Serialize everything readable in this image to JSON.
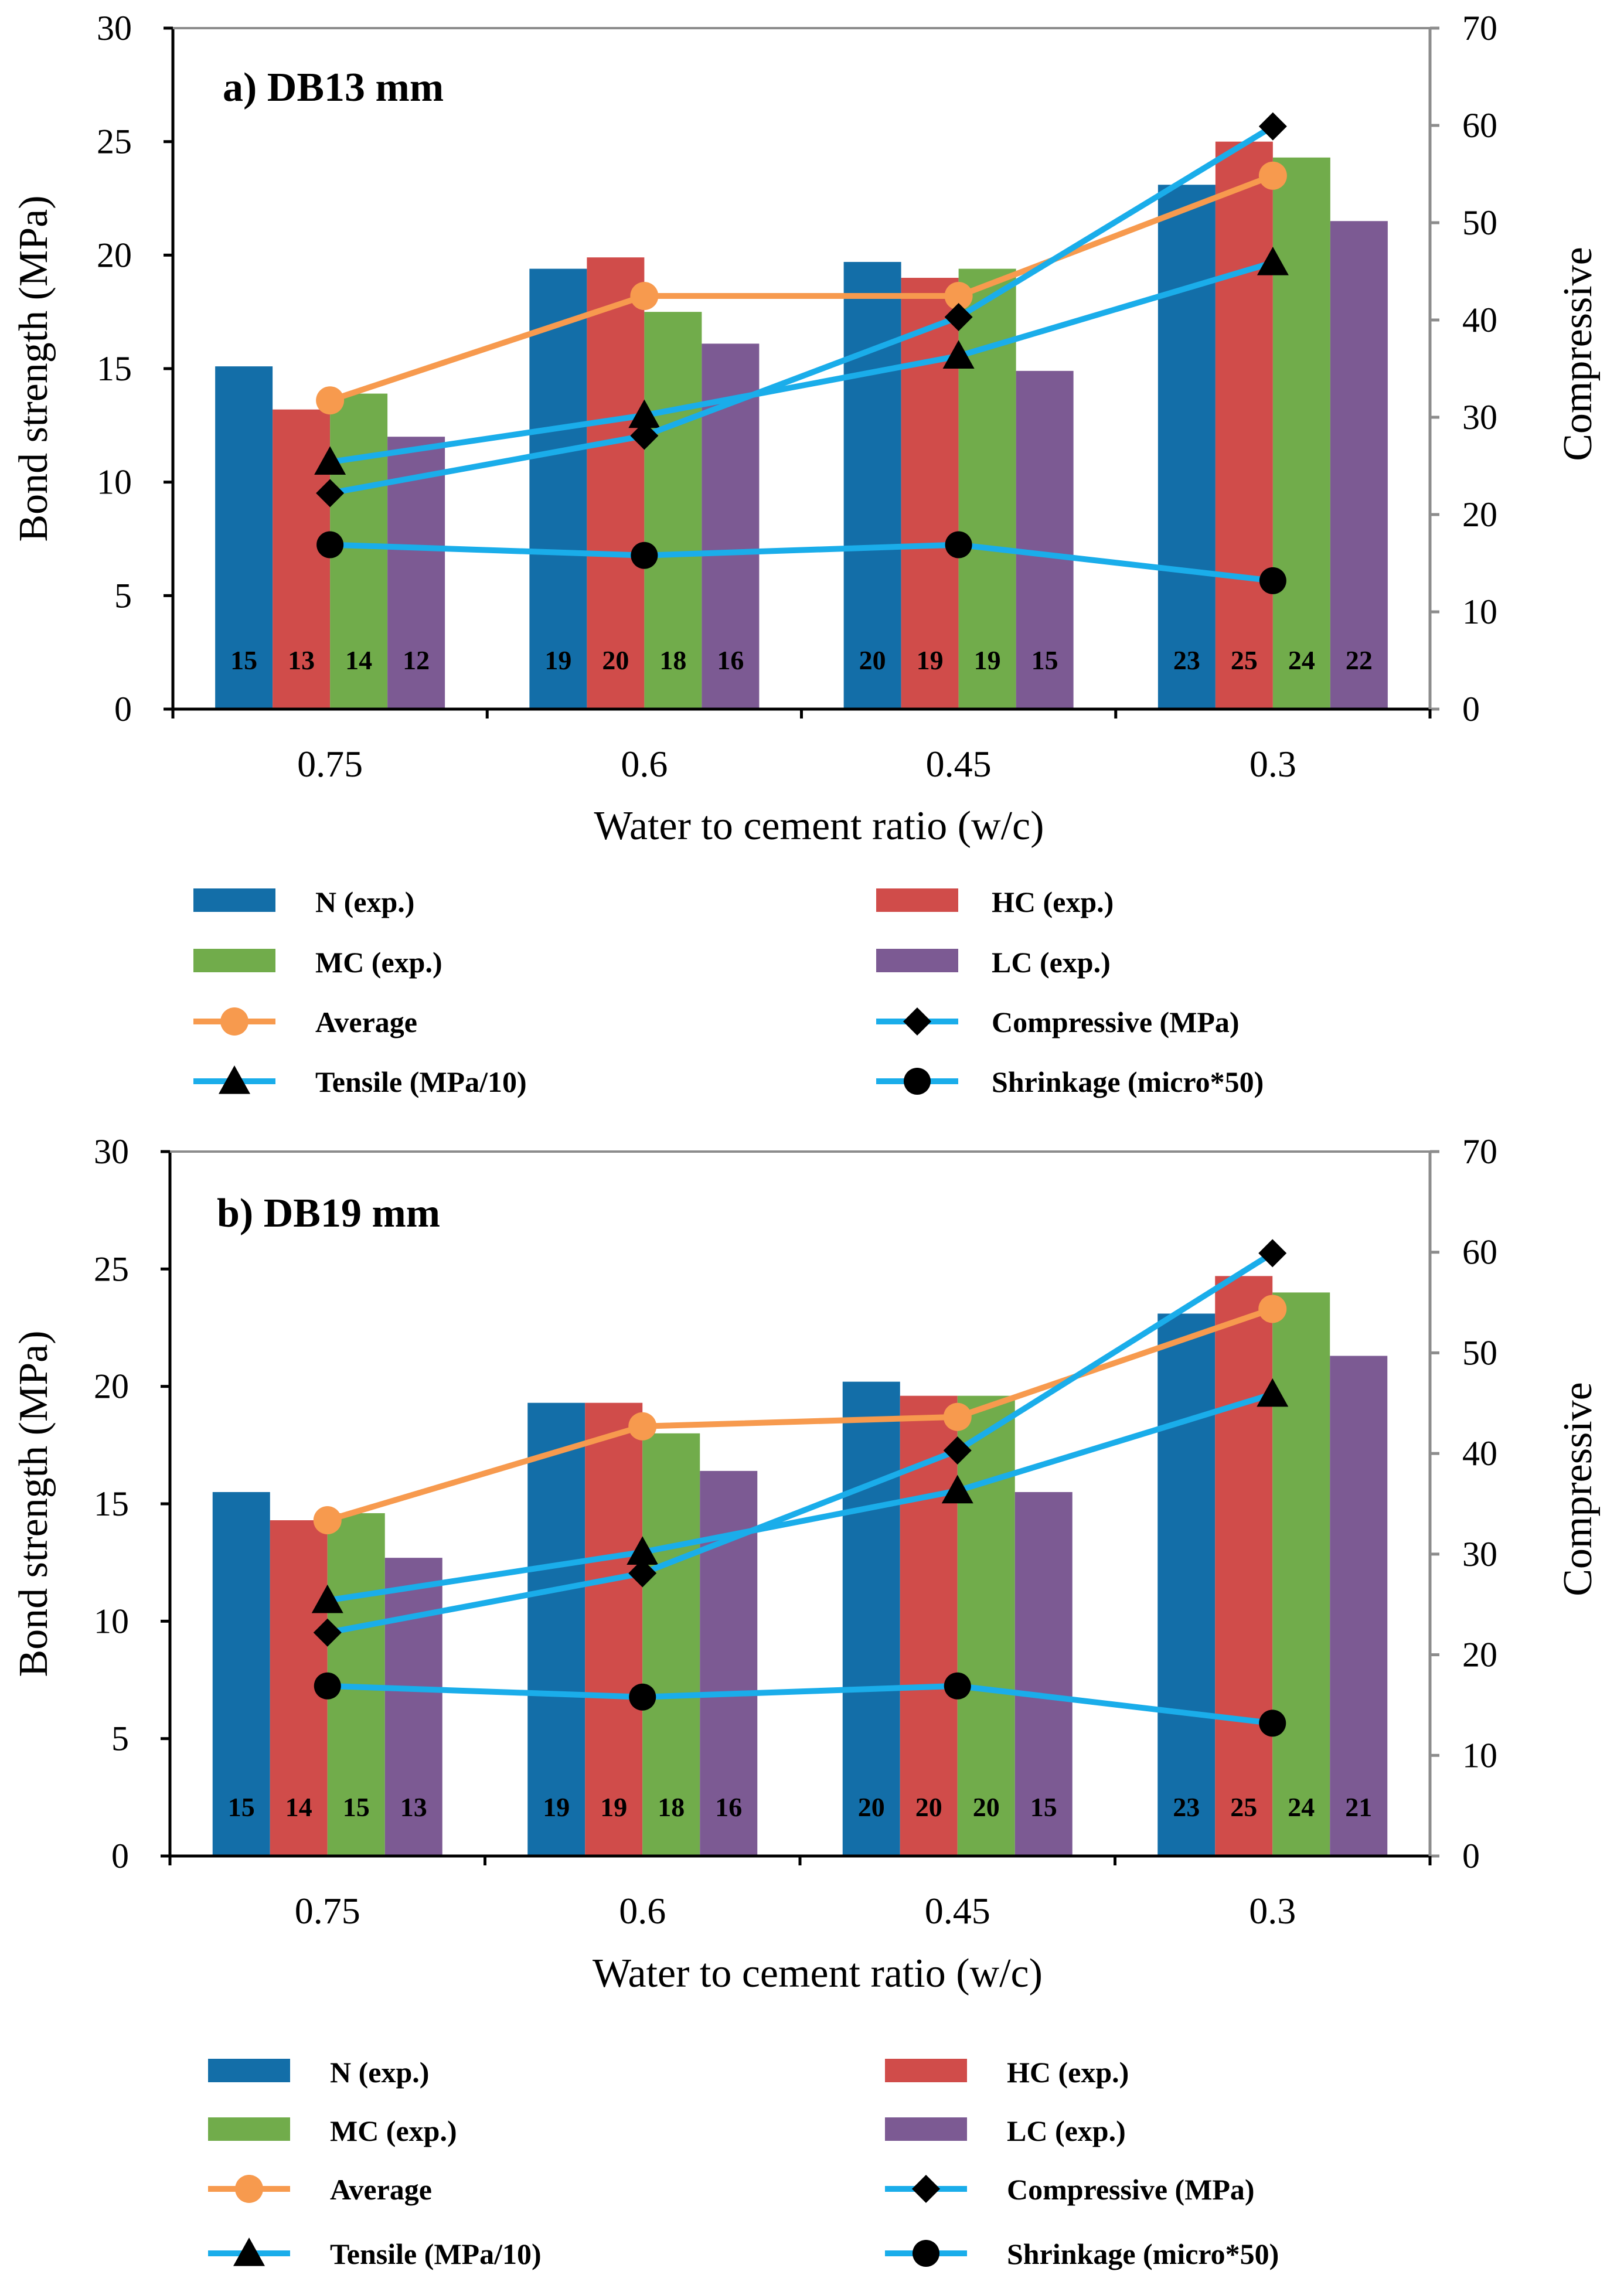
{
  "colors": {
    "N": "#136EA8",
    "HC": "#D04C4A",
    "MC": "#71AC4B",
    "LC": "#7C5A93",
    "average": "#F79A4E",
    "series_line": "#1AADEA",
    "marker": "#000000",
    "axis": "#000000",
    "right_axis": "#8C8C8C"
  },
  "chart_data": [
    {
      "type": "bar",
      "title": "a) DB13 mm",
      "xlabel": "Water to cement ratio (w/c)",
      "ylabel": "Bond strength (MPa)",
      "y2label": "Compressive",
      "categories": [
        "0.75",
        "0.6",
        "0.45",
        "0.3"
      ],
      "ylim": [
        0,
        30
      ],
      "yticks": [
        "0",
        "5",
        "10",
        "15",
        "20",
        "25",
        "30"
      ],
      "y2lim": [
        0,
        70
      ],
      "y2ticks": [
        "0",
        "10",
        "20",
        "30",
        "40",
        "50",
        "60",
        "70"
      ],
      "series": [
        {
          "key": "N",
          "name": "N (exp.)",
          "values": [
            15.1,
            19.4,
            19.7,
            23.1
          ],
          "labels": [
            "15",
            "19",
            "20",
            "23"
          ]
        },
        {
          "key": "HC",
          "name": "HC (exp.)",
          "values": [
            13.2,
            19.9,
            19.0,
            25.0
          ],
          "labels": [
            "13",
            "20",
            "19",
            "25"
          ]
        },
        {
          "key": "MC",
          "name": "MC (exp.)",
          "values": [
            13.9,
            17.5,
            19.4,
            24.3
          ],
          "labels": [
            "14",
            "18",
            "19",
            "24"
          ]
        },
        {
          "key": "LC",
          "name": "LC (exp.)",
          "values": [
            12.0,
            16.1,
            14.9,
            21.5
          ],
          "labels": [
            "12",
            "16",
            "15",
            "22"
          ]
        }
      ],
      "lines": [
        {
          "key": "average",
          "name": "Average",
          "axis": "left",
          "marker": "circle",
          "values": [
            13.6,
            18.2,
            18.2,
            23.5
          ]
        },
        {
          "key": "compressive",
          "name": "Compressive (MPa)",
          "axis": "right",
          "marker": "diamond",
          "values": [
            22.2,
            28.1,
            40.3,
            59.9
          ]
        },
        {
          "key": "tensile",
          "name": "Tensile (MPa/10)",
          "axis": "right",
          "marker": "triangle",
          "values": [
            25.4,
            30.2,
            36.3,
            45.9
          ]
        },
        {
          "key": "shrinkage",
          "name": "Shrinkage (micro*50)",
          "axis": "right",
          "marker": "dot",
          "values": [
            16.9,
            15.8,
            16.9,
            13.2
          ]
        }
      ]
    },
    {
      "type": "bar",
      "title": "b) DB19 mm",
      "xlabel": "Water to cement ratio (w/c)",
      "ylabel": "Bond strength (MPa)",
      "y2label": "Compressive",
      "categories": [
        "0.75",
        "0.6",
        "0.45",
        "0.3"
      ],
      "ylim": [
        0,
        30
      ],
      "yticks": [
        "0",
        "5",
        "10",
        "15",
        "20",
        "25",
        "30"
      ],
      "y2lim": [
        0,
        70
      ],
      "y2ticks": [
        "0",
        "10",
        "20",
        "30",
        "40",
        "50",
        "60",
        "70"
      ],
      "series": [
        {
          "key": "N",
          "name": "N (exp.)",
          "values": [
            15.5,
            19.3,
            20.2,
            23.1
          ],
          "labels": [
            "15",
            "19",
            "20",
            "23"
          ]
        },
        {
          "key": "HC",
          "name": "HC (exp.)",
          "values": [
            14.3,
            19.3,
            19.6,
            24.7
          ],
          "labels": [
            "14",
            "19",
            "20",
            "25"
          ]
        },
        {
          "key": "MC",
          "name": "MC (exp.)",
          "values": [
            14.6,
            18.0,
            19.6,
            24.0
          ],
          "labels": [
            "15",
            "18",
            "20",
            "24"
          ]
        },
        {
          "key": "LC",
          "name": "LC (exp.)",
          "values": [
            12.7,
            16.4,
            15.5,
            21.3
          ],
          "labels": [
            "13",
            "16",
            "15",
            "21"
          ]
        }
      ],
      "lines": [
        {
          "key": "average",
          "name": "Average",
          "axis": "left",
          "marker": "circle",
          "values": [
            14.3,
            18.3,
            18.7,
            23.3
          ]
        },
        {
          "key": "compressive",
          "name": "Compressive (MPa)",
          "axis": "right",
          "marker": "diamond",
          "values": [
            22.2,
            28.1,
            40.3,
            59.9
          ]
        },
        {
          "key": "tensile",
          "name": "Tensile (MPa/10)",
          "axis": "right",
          "marker": "triangle",
          "values": [
            25.4,
            30.2,
            36.3,
            45.9
          ]
        },
        {
          "key": "shrinkage",
          "name": "Shrinkage (micro*50)",
          "axis": "right",
          "marker": "dot",
          "values": [
            16.9,
            15.8,
            16.9,
            13.2
          ]
        }
      ]
    }
  ]
}
